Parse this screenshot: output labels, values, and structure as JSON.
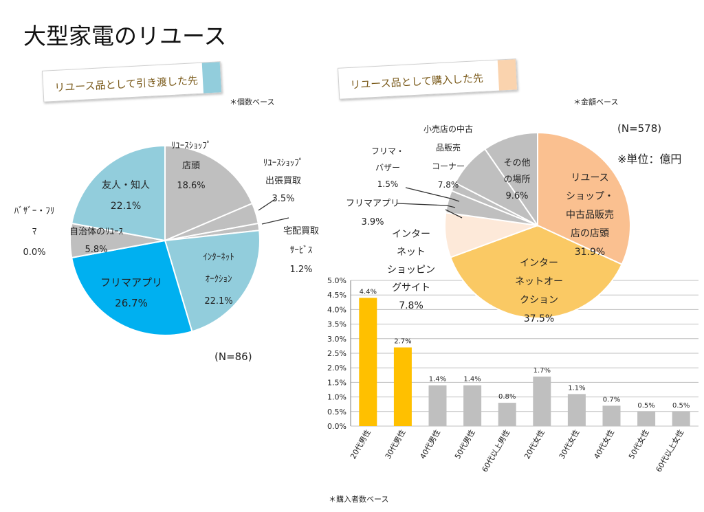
{
  "title": "大型家電のリユース",
  "left": {
    "tag": "リユース品として引き渡した先",
    "tag_color": "#92CDDC",
    "basis": "＊個数ベース",
    "n_label": "(N=86)"
  },
  "right": {
    "tag": "リユース品として購入した先",
    "tag_color": "#FAD3AE",
    "basis": "＊金額ベース",
    "n_label": "(N=578)",
    "unit": "※単位：億円"
  },
  "bar": {
    "basis": "＊購入者数ベース"
  },
  "chart_data": [
    {
      "type": "pie",
      "title": "リユース品として引き渡した先",
      "slices": [
        {
          "label": "リユースショップ店頭",
          "lines": [
            "ﾘﾕｰｽｼｮｯﾌﾟ",
            "店頭",
            "18.6%"
          ],
          "value": 18.6,
          "color": "#BFBFBF"
        },
        {
          "label": "リユースショップ出張買取",
          "lines": [
            "ﾘﾕｰｽｼｮｯﾌﾟ",
            "出張買取",
            "3.5%"
          ],
          "value": 3.5,
          "color": "#BFBFBF"
        },
        {
          "label": "宅配買取サービス",
          "lines": [
            "宅配買取",
            "ｻｰﾋﾞｽ",
            "1.2%"
          ],
          "value": 1.2,
          "color": "#BFBFBF"
        },
        {
          "label": "インターネットオークション",
          "lines": [
            "ｲﾝﾀｰﾈｯﾄ",
            "ｵｰｸｼｮﾝ",
            "22.1%"
          ],
          "value": 22.1,
          "color": "#92CDDC"
        },
        {
          "label": "フリマアプリ",
          "lines": [
            "フリマアプリ",
            "26.7%"
          ],
          "value": 26.7,
          "color": "#00B0F0"
        },
        {
          "label": "自治体のリユース",
          "lines": [
            "自治体のﾘﾕｰｽ",
            "5.8%"
          ],
          "value": 5.8,
          "color": "#BFBFBF"
        },
        {
          "label": "バザー・フリマ",
          "lines": [
            "ﾊﾞｻﾞｰ・ﾌﾘ",
            "ﾏ",
            "0.0%"
          ],
          "value": 0.0,
          "color": "#92CDDC"
        },
        {
          "label": "友人・知人",
          "lines": [
            "友人・知人",
            "22.1%"
          ],
          "value": 22.1,
          "color": "#92CDDC"
        }
      ]
    },
    {
      "type": "pie",
      "title": "リユース品として購入した先",
      "slices": [
        {
          "label": "リユースショップ・中古品販売店の店頭",
          "lines": [
            "リユース",
            "ショップ・",
            "中古品販売",
            "店の店頭",
            "31.9%"
          ],
          "value": 31.9,
          "color": "#FAC090"
        },
        {
          "label": "インターネットオークション",
          "lines": [
            "インター",
            "ネットオー",
            "クション",
            "37.5%"
          ],
          "value": 37.5,
          "color": "#FAC964"
        },
        {
          "label": "インターネットショッピングサイト",
          "lines": [
            "インター",
            "ネット",
            "ショッピン",
            "グサイト",
            "7.8%"
          ],
          "value": 7.8,
          "color": "#FDE9D9"
        },
        {
          "label": "フリマアプリ",
          "lines": [
            "フリマアプリ",
            "3.9%"
          ],
          "value": 3.9,
          "color": "#BFBFBF"
        },
        {
          "label": "フリマ・バザー",
          "lines": [
            "フリマ・",
            "バザー",
            "1.5%"
          ],
          "value": 1.5,
          "color": "#BFBFBF"
        },
        {
          "label": "小売店の中古品販売コーナー",
          "lines": [
            "小売店の中古",
            "品販売",
            "コーナー",
            "7.8%"
          ],
          "value": 7.8,
          "color": "#BFBFBF"
        },
        {
          "label": "その他の場所",
          "lines": [
            "その他",
            "の場所",
            "9.6%"
          ],
          "value": 9.6,
          "color": "#BFBFBF"
        }
      ]
    },
    {
      "type": "bar",
      "title": "",
      "categories": [
        "20代男性",
        "30代男性",
        "40代男性",
        "50代男性",
        "60代以上男性",
        "20代女性",
        "30代女性",
        "40代女性",
        "50代女性",
        "60代以上女性"
      ],
      "values": [
        4.4,
        2.7,
        1.4,
        1.4,
        0.8,
        1.7,
        1.1,
        0.7,
        0.5,
        0.5
      ],
      "data_labels": [
        "4.4%",
        "2.7%",
        "1.4%",
        "1.4%",
        "0.8%",
        "1.7%",
        "1.1%",
        "0.7%",
        "0.5%",
        "0.5%"
      ],
      "colors": [
        "#FFC000",
        "#FFC000",
        "#BFBFBF",
        "#BFBFBF",
        "#BFBFBF",
        "#BFBFBF",
        "#BFBFBF",
        "#BFBFBF",
        "#BFBFBF",
        "#BFBFBF"
      ],
      "yticks": [
        "0.0%",
        "0.5%",
        "1.0%",
        "1.5%",
        "2.0%",
        "2.5%",
        "3.0%",
        "3.5%",
        "4.0%",
        "4.5%",
        "5.0%"
      ],
      "ylim": [
        0,
        5.0
      ],
      "ylabel": "",
      "xlabel": ""
    }
  ]
}
